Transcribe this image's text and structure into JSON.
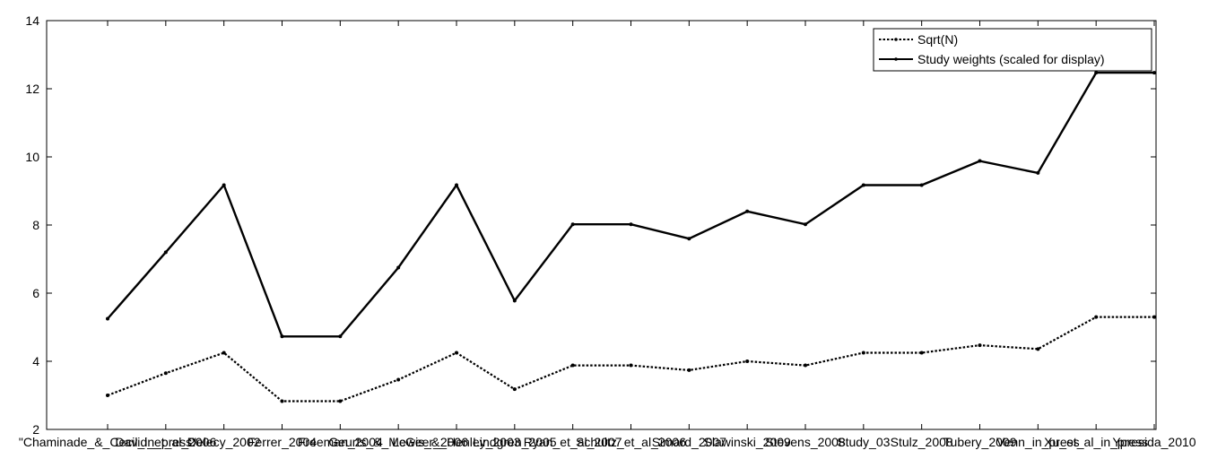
{
  "chart_data": {
    "type": "line",
    "categories": [
      "\"Chaminade_&_Cecil_in_press\"",
      "David_et_al_2006",
      "Delecy_2002",
      "Ferrer_2004",
      "Freeman_2004",
      "Geurts_&_McGeer_2006",
      "Lewis_&_Henley_2003",
      "Lindgren_2005",
      "Ryan_et_al_2007",
      "Schultz_et_al_2006",
      "Simard_2007",
      "Slawinski_2009",
      "Stevens_2008",
      "Study_03",
      "Stulz_2008",
      "Tubery_2009",
      "Venn_in_press",
      "Xu_et_al_in_press",
      "Ypresida_2010"
    ],
    "series": [
      {
        "name": "Sqrt(N)",
        "style": "dotted",
        "values": [
          3.0,
          3.65,
          4.25,
          2.83,
          2.83,
          3.46,
          4.25,
          3.18,
          3.88,
          3.88,
          3.74,
          4.0,
          3.88,
          4.25,
          4.25,
          4.47,
          4.36,
          5.3,
          5.3
        ]
      },
      {
        "name": "Study weights (scaled for display)",
        "style": "solid",
        "values": [
          5.25,
          7.2,
          9.17,
          4.73,
          4.73,
          6.75,
          9.17,
          5.78,
          8.02,
          8.02,
          7.6,
          8.4,
          8.02,
          9.17,
          9.17,
          9.88,
          9.53,
          12.47,
          12.47
        ]
      }
    ],
    "ylim": [
      2,
      14
    ],
    "yticks": [
      2,
      4,
      6,
      8,
      10,
      12,
      14
    ],
    "xlim_index": [
      0,
      18
    ],
    "legend_position": "top-right",
    "grid": false,
    "title": "",
    "xlabel": "",
    "ylabel": "",
    "colors": {
      "line": "#000000",
      "background": "#ffffff"
    }
  }
}
